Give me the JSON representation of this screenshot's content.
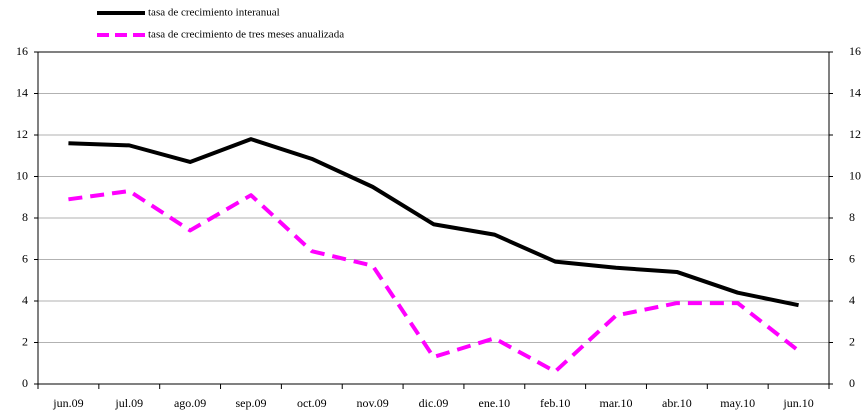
{
  "chart_data": {
    "type": "line",
    "categories": [
      "jun.09",
      "jul.09",
      "ago.09",
      "sep.09",
      "oct.09",
      "nov.09",
      "dic.09",
      "ene.10",
      "feb.10",
      "mar.10",
      "abr.10",
      "may.10",
      "jun.10"
    ],
    "series": [
      {
        "name": "tasa de crecimiento interanual",
        "color": "#000000",
        "dash": false,
        "values": [
          11.6,
          11.5,
          10.7,
          11.8,
          10.85,
          9.5,
          7.7,
          7.2,
          5.9,
          5.6,
          5.4,
          4.4,
          3.8
        ]
      },
      {
        "name": "tasa de crecimiento de tres meses anualizada",
        "color": "#ff00ff",
        "dash": true,
        "values": [
          8.9,
          9.3,
          7.4,
          9.1,
          6.4,
          5.7,
          1.3,
          2.2,
          0.6,
          3.3,
          3.9,
          3.9,
          1.6
        ]
      }
    ],
    "ylim": [
      0,
      16
    ],
    "yticks": [
      0,
      2,
      4,
      6,
      8,
      10,
      12,
      14,
      16
    ],
    "y2lim": [
      0,
      16
    ],
    "y2ticks": [
      0,
      2,
      4,
      6,
      8,
      10,
      12,
      14,
      16
    ],
    "grid": true,
    "legend": "top-left"
  }
}
